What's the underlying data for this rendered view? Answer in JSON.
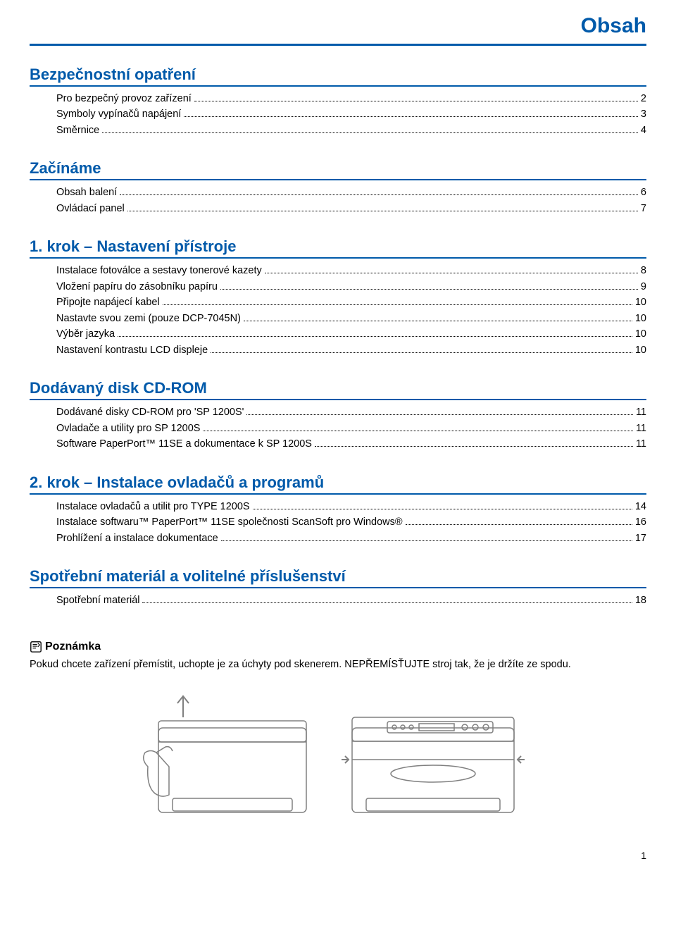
{
  "header": {
    "title": "Obsah"
  },
  "colors": {
    "accent": "#005aaa",
    "text": "#000000",
    "background": "#ffffff",
    "leader": "#000000",
    "illustration_stroke": "#808080"
  },
  "typography": {
    "header_title_fontsize": 30,
    "section_heading_fontsize": 22,
    "toc_item_fontsize": 14.5,
    "note_heading_fontsize": 16,
    "note_text_fontsize": 14.5,
    "page_number_fontsize": 14,
    "font_family": "Arial, Helvetica, sans-serif"
  },
  "sections": [
    {
      "heading": "Bezpečnostní opatření",
      "items": [
        {
          "label": "Pro bezpečný provoz zařízení",
          "page": "2"
        },
        {
          "label": "Symboly vypínačů napájení",
          "page": "3"
        },
        {
          "label": "Směrnice",
          "page": "4"
        }
      ]
    },
    {
      "heading": "Začínáme",
      "items": [
        {
          "label": "Obsah balení",
          "page": "6"
        },
        {
          "label": "Ovládací panel",
          "page": "7"
        }
      ]
    },
    {
      "heading": "1. krok – Nastavení přístroje",
      "items": [
        {
          "label": "Instalace fotoválce a sestavy tonerové kazety",
          "page": "8"
        },
        {
          "label": "Vložení papíru do zásobníku papíru",
          "page": "9"
        },
        {
          "label": "Připojte napájecí kabel",
          "page": "10"
        },
        {
          "label": "Nastavte svou zemi (pouze DCP-7045N)",
          "page": "10"
        },
        {
          "label": "Výběr jazyka",
          "page": "10"
        },
        {
          "label": "Nastavení kontrastu LCD displeje",
          "page": "10"
        }
      ]
    },
    {
      "heading": "Dodávaný disk CD-ROM",
      "items": [
        {
          "label": "Dodávané disky CD-ROM pro 'SP 1200S'",
          "page": "11"
        },
        {
          "label": "Ovladače a utility pro SP 1200S",
          "page": "11"
        },
        {
          "label": "Software PaperPort™ 11SE a dokumentace k SP 1200S",
          "page": "11"
        }
      ]
    },
    {
      "heading": "2. krok – Instalace ovladačů a programů",
      "items": [
        {
          "label": "Instalace ovladačů a utilit pro TYPE 1200S",
          "page": "14"
        },
        {
          "label": "Instalace softwaru™ PaperPort™ 11SE společnosti ScanSoft pro Windows®",
          "page": "16"
        },
        {
          "label": "Prohlížení a instalace dokumentace",
          "page": "17"
        }
      ]
    },
    {
      "heading": "Spotřební materiál a volitelné příslušenství",
      "items": [
        {
          "label": "Spotřební materiál",
          "page": "18"
        }
      ]
    }
  ],
  "note": {
    "heading": "Poznámka",
    "text": "Pokud chcete zařízení přemístit, uchopte je za úchyty pod skenerem. NEPŘEMÍSŤUJTE stroj tak, že je držíte ze spodu."
  },
  "page_number": "1",
  "illustration": {
    "type": "line_drawing",
    "stroke_color": "#808080",
    "stroke_width": 1.5,
    "description": "printer-handling-diagram"
  }
}
